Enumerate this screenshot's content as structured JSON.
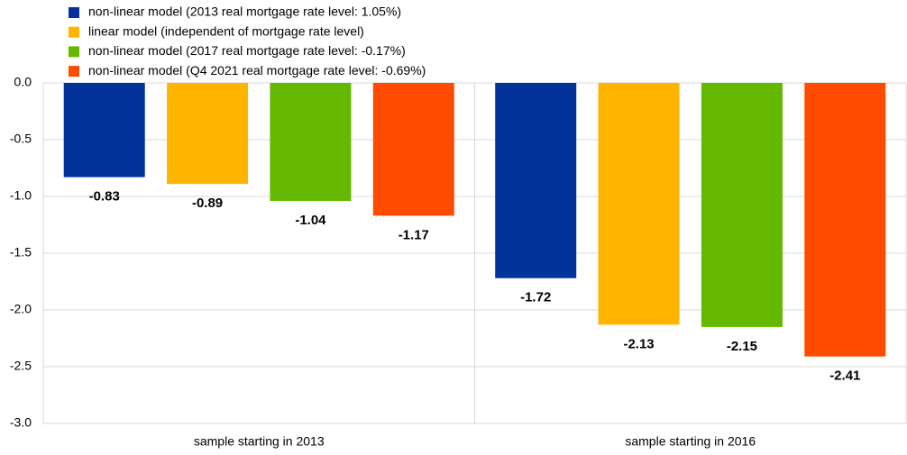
{
  "chart_data": {
    "type": "bar",
    "categories": [
      "sample starting in 2013",
      "sample starting in 2016"
    ],
    "series": [
      {
        "name": "non-linear model (2013 real mortgage rate level: 1.05%)",
        "color": "#003299",
        "values": [
          -0.83,
          -1.72
        ]
      },
      {
        "name": "linear model (independent of mortgage rate level)",
        "color": "#ffb400",
        "values": [
          -0.89,
          -2.13
        ]
      },
      {
        "name": "non-linear model (2017 real mortgage rate level: -0.17%)",
        "color": "#65b800",
        "values": [
          -1.04,
          -2.15
        ]
      },
      {
        "name": "non-linear model (Q4 2021 real mortgage rate level: -0.69%)",
        "color": "#ff4b00",
        "values": [
          -1.17,
          -2.41
        ]
      }
    ],
    "ylim": [
      -3,
      0
    ],
    "yticks": [
      {
        "value": 0,
        "label": "0.0"
      },
      -0.5,
      {
        "value": -1,
        "label": "-1.0"
      },
      -1.5,
      {
        "value": -2,
        "label": "-2.0"
      },
      -2.5,
      {
        "value": -3,
        "label": "-3.0"
      }
    ],
    "grid": true,
    "legend": "top-left"
  }
}
